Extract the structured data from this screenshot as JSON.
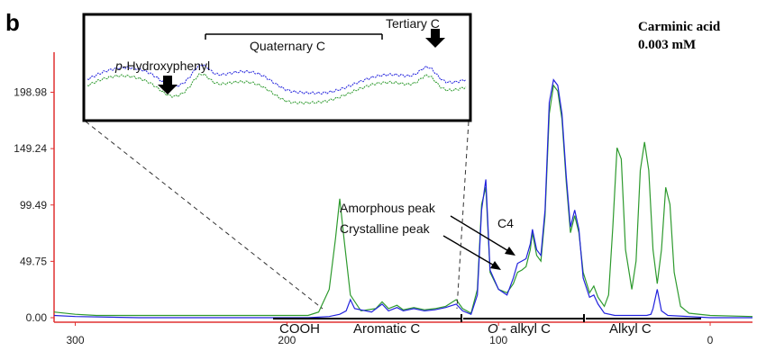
{
  "panel_label": "b",
  "title_line1": "Carminic acid",
  "title_line2": "0.003 mM",
  "region_labels": {
    "cooh": "COOH",
    "aromatic": "Aromatic C",
    "o_prefix": "O",
    "o_alkyl": " - alkyl C",
    "alkyl": "Alkyl C"
  },
  "annotations": {
    "c4": "C4",
    "amorphous": "Amorphous peak",
    "crystalline": "Crystalline peak",
    "tertiary": "Tertiary C",
    "quaternary": "Quaternary C",
    "hydroxyphenyl_prefix": "p",
    "hydroxyphenyl": "-Hydroxyphenyl"
  },
  "colors": {
    "green_series": "#2e9a2e",
    "blue_series": "#2222dd",
    "y_axis": "#e03030",
    "x_axis": "#e03030"
  },
  "chart_data": {
    "type": "line",
    "x_axis": {
      "range": [
        310,
        -20
      ],
      "reversed": true,
      "ticks": [
        300,
        200,
        100,
        0
      ],
      "tick_labels": [
        "300",
        "200",
        "100",
        "0"
      ]
    },
    "y_axis": {
      "range": [
        -6,
        240
      ],
      "ticks": [
        0,
        49.75,
        99.49,
        149.24,
        198.98
      ],
      "tick_labels": [
        "0.00",
        "49.75",
        "99.49",
        "149.24",
        "198.98"
      ]
    },
    "grid": false,
    "series": [
      {
        "color": "#2e9a2e",
        "points": [
          [
            310,
            5
          ],
          [
            300,
            3
          ],
          [
            290,
            2
          ],
          [
            270,
            2
          ],
          [
            250,
            2
          ],
          [
            230,
            2
          ],
          [
            210,
            2
          ],
          [
            200,
            2
          ],
          [
            190,
            2
          ],
          [
            185,
            5
          ],
          [
            180,
            25
          ],
          [
            177,
            70
          ],
          [
            175,
            105
          ],
          [
            173,
            70
          ],
          [
            170,
            20
          ],
          [
            165,
            6
          ],
          [
            158,
            8
          ],
          [
            155,
            14
          ],
          [
            152,
            8
          ],
          [
            148,
            11
          ],
          [
            145,
            7
          ],
          [
            140,
            9
          ],
          [
            135,
            7
          ],
          [
            130,
            8
          ],
          [
            125,
            10
          ],
          [
            120,
            16
          ],
          [
            117,
            8
          ],
          [
            113,
            4
          ],
          [
            110,
            25
          ],
          [
            108,
            100
          ],
          [
            106,
            115
          ],
          [
            104,
            40
          ],
          [
            100,
            25
          ],
          [
            96,
            22
          ],
          [
            93,
            30
          ],
          [
            91,
            40
          ],
          [
            89,
            42
          ],
          [
            87,
            45
          ],
          [
            85,
            60
          ],
          [
            84,
            75
          ],
          [
            82,
            55
          ],
          [
            80,
            50
          ],
          [
            78,
            90
          ],
          [
            76,
            180
          ],
          [
            74,
            205
          ],
          [
            72,
            200
          ],
          [
            70,
            175
          ],
          [
            68,
            120
          ],
          [
            66,
            75
          ],
          [
            64,
            90
          ],
          [
            62,
            75
          ],
          [
            60,
            40
          ],
          [
            57,
            22
          ],
          [
            55,
            28
          ],
          [
            53,
            18
          ],
          [
            50,
            10
          ],
          [
            48,
            20
          ],
          [
            46,
            80
          ],
          [
            44,
            150
          ],
          [
            42,
            140
          ],
          [
            40,
            60
          ],
          [
            37,
            25
          ],
          [
            35,
            50
          ],
          [
            33,
            130
          ],
          [
            31,
            155
          ],
          [
            29,
            130
          ],
          [
            27,
            60
          ],
          [
            25,
            30
          ],
          [
            23,
            60
          ],
          [
            21,
            115
          ],
          [
            19,
            100
          ],
          [
            17,
            40
          ],
          [
            14,
            10
          ],
          [
            10,
            4
          ],
          [
            0,
            2
          ],
          [
            -20,
            1
          ]
        ]
      },
      {
        "color": "#2222dd",
        "points": [
          [
            310,
            2
          ],
          [
            300,
            1
          ],
          [
            270,
            0
          ],
          [
            230,
            0
          ],
          [
            190,
            0
          ],
          [
            180,
            1
          ],
          [
            175,
            3
          ],
          [
            172,
            6
          ],
          [
            170,
            16
          ],
          [
            168,
            8
          ],
          [
            160,
            5
          ],
          [
            155,
            12
          ],
          [
            152,
            6
          ],
          [
            148,
            9
          ],
          [
            145,
            6
          ],
          [
            140,
            8
          ],
          [
            135,
            6
          ],
          [
            130,
            7
          ],
          [
            125,
            9
          ],
          [
            120,
            12
          ],
          [
            117,
            6
          ],
          [
            113,
            3
          ],
          [
            110,
            20
          ],
          [
            108,
            95
          ],
          [
            106,
            122
          ],
          [
            104,
            42
          ],
          [
            100,
            25
          ],
          [
            96,
            20
          ],
          [
            93,
            35
          ],
          [
            91,
            48
          ],
          [
            89,
            50
          ],
          [
            87,
            52
          ],
          [
            85,
            65
          ],
          [
            84,
            78
          ],
          [
            82,
            60
          ],
          [
            80,
            55
          ],
          [
            78,
            95
          ],
          [
            76,
            190
          ],
          [
            74,
            210
          ],
          [
            72,
            205
          ],
          [
            70,
            180
          ],
          [
            68,
            125
          ],
          [
            66,
            80
          ],
          [
            64,
            95
          ],
          [
            62,
            78
          ],
          [
            60,
            35
          ],
          [
            57,
            18
          ],
          [
            55,
            20
          ],
          [
            53,
            12
          ],
          [
            50,
            4
          ],
          [
            45,
            2
          ],
          [
            40,
            2
          ],
          [
            35,
            2
          ],
          [
            30,
            2
          ],
          [
            28,
            3
          ],
          [
            27,
            8
          ],
          [
            25,
            25
          ],
          [
            23,
            6
          ],
          [
            20,
            2
          ],
          [
            10,
            1
          ],
          [
            0,
            0
          ],
          [
            -20,
            0
          ]
        ]
      }
    ]
  }
}
